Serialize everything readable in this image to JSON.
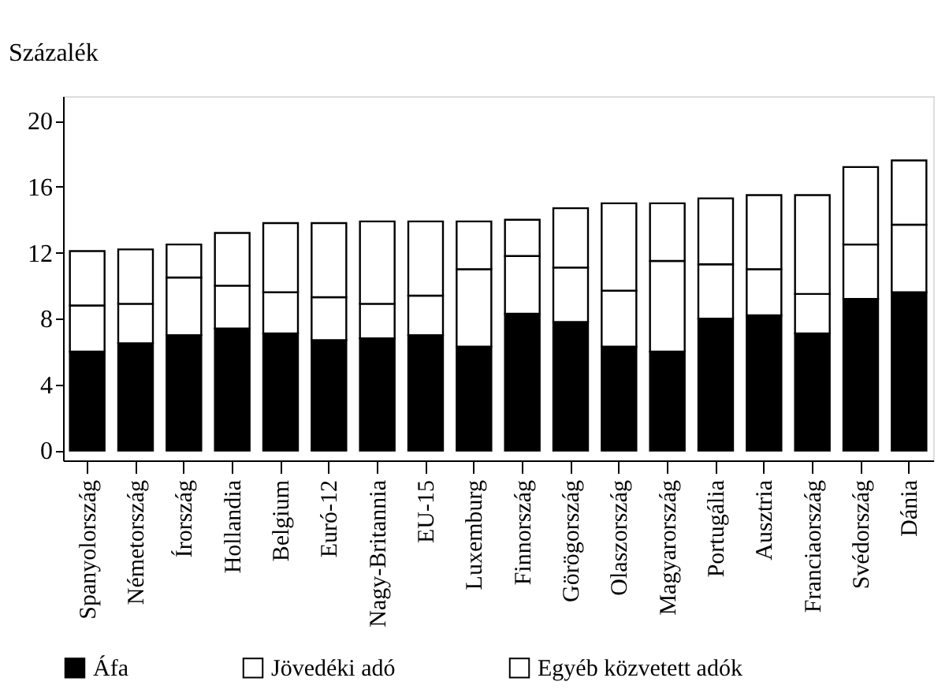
{
  "chart_data": {
    "type": "bar",
    "stacked": true,
    "ylabel": "Százalék",
    "categories": [
      "Spanyolország",
      "Németország",
      "Írország",
      "Hollandia",
      "Belgium",
      "Euró-12",
      "Nagy-Britannia",
      "EU-15",
      "Luxemburg",
      "Finnország",
      "Görögország",
      "Olaszország",
      "Magyarország",
      "Portugália",
      "Ausztria",
      "Franciaország",
      "Svédország",
      "Dánia"
    ],
    "series": [
      {
        "name": "Áfa",
        "color": "#000000",
        "values": [
          6.0,
          6.5,
          7.0,
          7.4,
          7.1,
          6.7,
          6.8,
          7.0,
          6.3,
          8.3,
          7.8,
          6.3,
          6.0,
          8.0,
          8.2,
          7.1,
          9.2,
          9.6
        ]
      },
      {
        "name": "Jövedéki adó",
        "color": "#ffffff",
        "values": [
          2.8,
          2.4,
          3.5,
          2.6,
          2.5,
          2.6,
          2.1,
          2.4,
          4.7,
          3.5,
          3.3,
          3.4,
          5.5,
          3.3,
          2.8,
          2.4,
          3.3,
          4.1
        ]
      },
      {
        "name": "Egyéb közvetett adók",
        "color": "#ffffff",
        "values": [
          3.3,
          3.3,
          2.0,
          3.2,
          4.2,
          4.5,
          5.0,
          4.5,
          2.9,
          2.2,
          3.6,
          5.3,
          3.5,
          4.0,
          4.5,
          6.0,
          4.7,
          3.9
        ]
      }
    ],
    "ylim": [
      -0.6,
      21.5
    ],
    "yticks": [
      0,
      4,
      8,
      12,
      16,
      20
    ],
    "grid": false,
    "legend": "bottom"
  }
}
